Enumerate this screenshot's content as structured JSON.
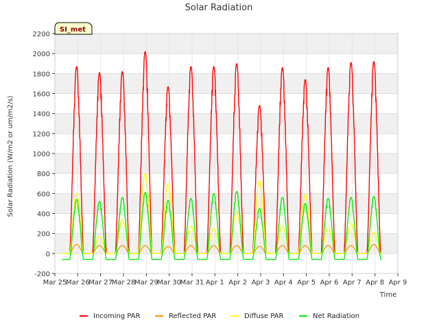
{
  "chart_data": {
    "type": "line",
    "title": "Solar Radiation",
    "xlabel": "Time",
    "ylabel": "Solar Radiation (W/m2 or um/m2/s)",
    "station_badge": "SI_met",
    "ylim": [
      -200,
      2200
    ],
    "yticks": [
      -200,
      0,
      200,
      400,
      600,
      800,
      1000,
      1200,
      1400,
      1600,
      1800,
      2000,
      2200
    ],
    "xlim": [
      0,
      15
    ],
    "xtick_labels": [
      "Mar 25",
      "Mar 26",
      "Mar 27",
      "Mar 28",
      "Mar 29",
      "Mar 30",
      "Mar 31",
      "Apr 1",
      "Apr 2",
      "Apr 3",
      "Apr 4",
      "Apr 5",
      "Apr 6",
      "Apr 7",
      "Apr 8",
      "Apr 9"
    ],
    "day_centers": [
      0.95,
      1.95,
      2.95,
      3.95,
      4.95,
      5.95,
      6.95,
      7.95,
      8.95,
      9.95,
      10.95,
      11.95,
      12.95,
      13.95
    ],
    "series": [
      {
        "name": "Incoming PAR",
        "color": "#ff0000",
        "night": 0,
        "peaks": [
          1870,
          1810,
          1820,
          2020,
          1670,
          1870,
          1870,
          1900,
          1480,
          1860,
          1740,
          1860,
          1910,
          1920
        ]
      },
      {
        "name": "Reflected PAR",
        "color": "#ff9900",
        "night": 0,
        "peaks": [
          90,
          80,
          80,
          80,
          70,
          80,
          80,
          80,
          70,
          80,
          80,
          80,
          80,
          90
        ]
      },
      {
        "name": "Diffuse PAR",
        "color": "#ffff00",
        "night": 0,
        "peaks": [
          600,
          170,
          340,
          800,
          700,
          270,
          250,
          420,
          730,
          280,
          590,
          250,
          300,
          210
        ]
      },
      {
        "name": "Net Radiation",
        "color": "#00ee00",
        "night": -60,
        "peaks": [
          540,
          520,
          560,
          610,
          530,
          550,
          600,
          620,
          450,
          560,
          500,
          550,
          560,
          570
        ]
      }
    ]
  }
}
